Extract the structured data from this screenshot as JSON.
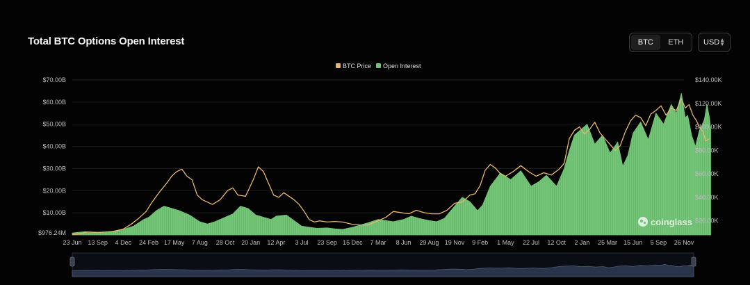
{
  "header": {
    "title": "Total BTC Options Open Interest",
    "coin_options": [
      "BTC",
      "ETH"
    ],
    "active_coin": "BTC",
    "currency": "USD"
  },
  "watermark": "coinglass",
  "colors": {
    "background": "#000000",
    "btc_price": "#e7b86c",
    "open_interest": "#73c477",
    "gridline": "#1c1c1c",
    "navigator_fill": "#2a3448"
  },
  "chart_data": {
    "type": "area",
    "legend": [
      {
        "name": "BTC Price",
        "color": "#e7b86c",
        "kind": "line",
        "axis": "right"
      },
      {
        "name": "Open Interest",
        "color": "#73c477",
        "kind": "area",
        "axis": "left"
      }
    ],
    "legend_position": "top-center",
    "grid": true,
    "x_tick_labels": [
      "23 Jun",
      "13 Sep",
      "4 Dec",
      "24 Feb",
      "17 May",
      "7 Aug",
      "28 Oct",
      "20 Jan",
      "12 Apr",
      "3 Jul",
      "23 Sep",
      "15 Dec",
      "7 Mar",
      "8 Jun",
      "29 Aug",
      "19 Nov",
      "9 Feb",
      "1 May",
      "22 Jul",
      "12 Oct",
      "2 Jan",
      "25 Mar",
      "15 Jun",
      "5 Sep",
      "26 Nov"
    ],
    "y_left_tick_labels": [
      "$976.24M",
      "$10.00B",
      "$20.00B",
      "$30.00B",
      "$40.00B",
      "$50.00B",
      "$60.00B",
      "$70.00B"
    ],
    "y_left_range": [
      0,
      70
    ],
    "y_left_unit": "B USD",
    "y_right_tick_labels": [
      "$20.00K",
      "$40.00K",
      "$60.00K",
      "$80.00K",
      "$100.00K",
      "$120.00K",
      "$140.00K"
    ],
    "y_right_range": [
      8,
      140
    ],
    "y_right_unit": "K USD",
    "x_index_range": [
      0,
      24
    ],
    "series": [
      {
        "name": "Open Interest",
        "axis": "left",
        "points": [
          [
            0,
            0.9
          ],
          [
            0.5,
            1.5
          ],
          [
            0.8,
            1.2
          ],
          [
            1,
            1.0
          ],
          [
            1.5,
            1.5
          ],
          [
            2,
            2.5
          ],
          [
            2.4,
            4
          ],
          [
            2.8,
            7
          ],
          [
            3,
            8
          ],
          [
            3.3,
            11
          ],
          [
            3.6,
            13
          ],
          [
            3.9,
            12
          ],
          [
            4.2,
            11
          ],
          [
            4.6,
            9
          ],
          [
            5,
            6
          ],
          [
            5.3,
            5
          ],
          [
            5.6,
            6
          ],
          [
            6,
            8
          ],
          [
            6.3,
            9.5
          ],
          [
            6.6,
            13
          ],
          [
            6.9,
            12
          ],
          [
            7.2,
            9
          ],
          [
            7.5,
            8
          ],
          [
            7.8,
            7
          ],
          [
            8,
            8.5
          ],
          [
            8.4,
            9
          ],
          [
            8.7,
            6.5
          ],
          [
            9,
            4
          ],
          [
            9.3,
            3.5
          ],
          [
            9.6,
            3
          ],
          [
            10,
            3.2
          ],
          [
            10.3,
            2.8
          ],
          [
            10.6,
            2.5
          ],
          [
            11,
            3.5
          ],
          [
            11.3,
            4.5
          ],
          [
            11.6,
            5.5
          ],
          [
            12,
            7
          ],
          [
            12.3,
            6.5
          ],
          [
            12.6,
            6
          ],
          [
            13,
            7
          ],
          [
            13.3,
            8.5
          ],
          [
            13.6,
            7.5
          ],
          [
            14,
            6.5
          ],
          [
            14.3,
            6
          ],
          [
            14.6,
            7.5
          ],
          [
            15,
            13
          ],
          [
            15.3,
            17
          ],
          [
            15.6,
            15
          ],
          [
            15.9,
            11
          ],
          [
            16.1,
            13.5
          ],
          [
            16.4,
            22
          ],
          [
            16.8,
            28
          ],
          [
            17.2,
            25
          ],
          [
            17.6,
            29
          ],
          [
            18,
            22
          ],
          [
            18.3,
            24
          ],
          [
            18.6,
            27
          ],
          [
            19,
            22
          ],
          [
            19.3,
            30
          ],
          [
            19.5,
            38
          ],
          [
            19.7,
            45
          ],
          [
            20,
            48
          ],
          [
            20.2,
            50
          ],
          [
            20.5,
            41
          ],
          [
            20.8,
            45
          ],
          [
            21.1,
            37
          ],
          [
            21.4,
            42
          ],
          [
            21.6,
            31
          ],
          [
            21.8,
            36
          ],
          [
            22,
            46
          ],
          [
            22.3,
            51
          ],
          [
            22.6,
            43
          ],
          [
            22.9,
            55
          ],
          [
            23.2,
            50
          ],
          [
            23.5,
            59
          ],
          [
            23.7,
            55
          ],
          [
            23.9,
            64
          ],
          [
            24.05,
            53
          ],
          [
            24.15,
            54
          ],
          [
            24.3,
            45
          ],
          [
            24.45,
            40
          ],
          [
            24.6,
            47
          ],
          [
            24.8,
            52
          ],
          [
            24.9,
            59
          ],
          [
            25,
            53
          ],
          [
            25.05,
            48
          ]
        ]
      },
      {
        "name": "BTC Price",
        "axis": "right",
        "points": [
          [
            0,
            8.5
          ],
          [
            0.3,
            9
          ],
          [
            0.6,
            10.5
          ],
          [
            1,
            10.2
          ],
          [
            1.3,
            10.5
          ],
          [
            1.6,
            11
          ],
          [
            2,
            13
          ],
          [
            2.3,
            17
          ],
          [
            2.6,
            22
          ],
          [
            2.9,
            28
          ],
          [
            3.1,
            35
          ],
          [
            3.4,
            44
          ],
          [
            3.7,
            52
          ],
          [
            3.9,
            58
          ],
          [
            4.1,
            62
          ],
          [
            4.3,
            64
          ],
          [
            4.5,
            58
          ],
          [
            4.7,
            55
          ],
          [
            4.9,
            42
          ],
          [
            5.1,
            38
          ],
          [
            5.3,
            36
          ],
          [
            5.5,
            34
          ],
          [
            5.8,
            38
          ],
          [
            6.1,
            46
          ],
          [
            6.3,
            48
          ],
          [
            6.5,
            42
          ],
          [
            6.8,
            41
          ],
          [
            7.1,
            55
          ],
          [
            7.3,
            66
          ],
          [
            7.5,
            62
          ],
          [
            7.7,
            52
          ],
          [
            7.9,
            42
          ],
          [
            8.1,
            40
          ],
          [
            8.3,
            44
          ],
          [
            8.5,
            41
          ],
          [
            8.7,
            38
          ],
          [
            8.9,
            34
          ],
          [
            9.1,
            28
          ],
          [
            9.3,
            21
          ],
          [
            9.5,
            19
          ],
          [
            9.7,
            20
          ],
          [
            10,
            19
          ],
          [
            10.3,
            19.5
          ],
          [
            10.6,
            19
          ],
          [
            11,
            17
          ],
          [
            11.3,
            16.5
          ],
          [
            11.6,
            16.5
          ],
          [
            12,
            20
          ],
          [
            12.3,
            23
          ],
          [
            12.6,
            28
          ],
          [
            12.9,
            27
          ],
          [
            13.2,
            26
          ],
          [
            13.5,
            29
          ],
          [
            13.8,
            27
          ],
          [
            14.1,
            26
          ],
          [
            14.4,
            26
          ],
          [
            14.7,
            29
          ],
          [
            15,
            35
          ],
          [
            15.3,
            36
          ],
          [
            15.6,
            42
          ],
          [
            15.8,
            43
          ],
          [
            16,
            50
          ],
          [
            16.2,
            63
          ],
          [
            16.4,
            68
          ],
          [
            16.6,
            65
          ],
          [
            16.8,
            60
          ],
          [
            17,
            58
          ],
          [
            17.3,
            62
          ],
          [
            17.6,
            67
          ],
          [
            17.9,
            62
          ],
          [
            18.2,
            58
          ],
          [
            18.5,
            61
          ],
          [
            18.8,
            59
          ],
          [
            19.1,
            64
          ],
          [
            19.3,
            69
          ],
          [
            19.5,
            90
          ],
          [
            19.7,
            97
          ],
          [
            19.9,
            100
          ],
          [
            20.1,
            94
          ],
          [
            20.3,
            98
          ],
          [
            20.5,
            104
          ],
          [
            20.7,
            95
          ],
          [
            20.9,
            90
          ],
          [
            21.1,
            85
          ],
          [
            21.3,
            80
          ],
          [
            21.5,
            84
          ],
          [
            21.7,
            96
          ],
          [
            21.9,
            105
          ],
          [
            22.1,
            110
          ],
          [
            22.3,
            108
          ],
          [
            22.5,
            101
          ],
          [
            22.7,
            111
          ],
          [
            22.9,
            114
          ],
          [
            23.1,
            118
          ],
          [
            23.3,
            110
          ],
          [
            23.5,
            116
          ],
          [
            23.7,
            114
          ],
          [
            23.9,
            124
          ],
          [
            24.05,
            116
          ],
          [
            24.2,
            119
          ],
          [
            24.35,
            110
          ],
          [
            24.5,
            105
          ],
          [
            24.6,
            100
          ],
          [
            24.75,
            96
          ],
          [
            24.85,
            88
          ],
          [
            25,
            90
          ]
        ]
      }
    ],
    "navigator": {
      "type": "area",
      "series": "Open Interest"
    }
  }
}
